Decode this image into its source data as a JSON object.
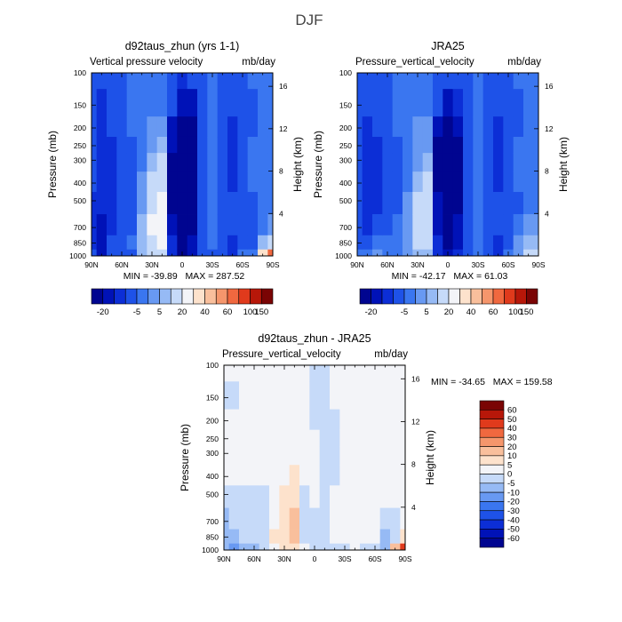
{
  "figure": {
    "title": "DJF"
  },
  "chart_data": [
    {
      "type": "heatmap",
      "title": "d92taus_zhun (yrs 1-1)",
      "subtitle_left": "Vertical pressure velocity",
      "subtitle_right": "mb/day",
      "ylabel": "Pressure (mb)",
      "ylabel_right": "Height (km)",
      "x_ticks": [
        "90N",
        "60N",
        "30N",
        "0",
        "30S",
        "60S",
        "90S"
      ],
      "y_ticks": [
        "100",
        "150",
        "200",
        "250",
        "300",
        "400",
        "500",
        "700",
        "850",
        "1000"
      ],
      "y_right_ticks": [
        "16",
        "12",
        "8",
        "4"
      ],
      "stats": "MIN = -39.89   MAX = 287.52",
      "colorbar_labels": [
        "-20",
        "-5",
        "5",
        "20",
        "40",
        "60",
        "100",
        "150"
      ],
      "colorbar_colors": [
        "#000590",
        "#0012b7",
        "#0c2ed6",
        "#1e52e8",
        "#3a76f0",
        "#6899f2",
        "#96baf5",
        "#c6daf9",
        "#f3f4f8",
        "#fde2cc",
        "#f9bf9c",
        "#f5966c",
        "#f0683f",
        "#e03a1c",
        "#b71709",
        "#7a0404"
      ],
      "colorbar_orientation": "horizontal-below",
      "field": [
        {
          "lat": 90,
          "v": [
            -8,
            -10,
            -10,
            -10,
            -10,
            -10,
            -12,
            -14,
            -12,
            -10
          ]
        },
        {
          "lat": 80,
          "v": [
            -9,
            -11,
            -12,
            -12,
            -12,
            -13,
            -14,
            -16,
            -18,
            -16
          ]
        },
        {
          "lat": 70,
          "v": [
            -7,
            -9,
            -10,
            -11,
            -11,
            -12,
            -13,
            -12,
            -10,
            -8
          ]
        },
        {
          "lat": 60,
          "v": [
            -6,
            -6,
            -7,
            -8,
            -8,
            -9,
            -10,
            -10,
            -9,
            -9
          ]
        },
        {
          "lat": 50,
          "v": [
            -3,
            -4,
            -5,
            -6,
            -6,
            -6,
            -7,
            -6,
            -5,
            -6
          ]
        },
        {
          "lat": 40,
          "v": [
            -2,
            -3,
            -2,
            -2,
            -1,
            1,
            2,
            6,
            8,
            6
          ]
        },
        {
          "lat": 30,
          "v": [
            -1,
            -1,
            0,
            2,
            5,
            10,
            15,
            20,
            18,
            12
          ]
        },
        {
          "lat": 20,
          "v": [
            -2,
            -1,
            2,
            6,
            10,
            16,
            20,
            24,
            22,
            15
          ]
        },
        {
          "lat": 10,
          "v": [
            -6,
            -10,
            -16,
            -20,
            -22,
            -24,
            -22,
            -18,
            -15,
            -12
          ]
        },
        {
          "lat": 0,
          "v": [
            -12,
            -20,
            -28,
            -34,
            -36,
            -38,
            -36,
            -30,
            -28,
            -24
          ]
        },
        {
          "lat": -10,
          "v": [
            -10,
            -16,
            -22,
            -26,
            -28,
            -28,
            -26,
            -22,
            -20,
            -18
          ]
        },
        {
          "lat": -20,
          "v": [
            -6,
            -8,
            -10,
            -10,
            -10,
            -10,
            -8,
            -6,
            -6,
            -8
          ]
        },
        {
          "lat": -30,
          "v": [
            -4,
            -5,
            -5,
            -4,
            -3,
            -3,
            -3,
            -3,
            -4,
            -6
          ]
        },
        {
          "lat": -40,
          "v": [
            -7,
            -8,
            -9,
            -9,
            -9,
            -8,
            -8,
            -8,
            -8,
            -10
          ]
        },
        {
          "lat": -50,
          "v": [
            -8,
            -10,
            -12,
            -12,
            -12,
            -11,
            -10,
            -10,
            -12,
            -14
          ]
        },
        {
          "lat": -60,
          "v": [
            -6,
            -8,
            -9,
            -9,
            -9,
            -9,
            -9,
            -8,
            -6,
            -5
          ]
        },
        {
          "lat": -70,
          "v": [
            -4,
            -6,
            -6,
            -5,
            -4,
            -5,
            -6,
            -8,
            -6,
            -4
          ]
        },
        {
          "lat": -80,
          "v": [
            -2,
            -3,
            -3,
            -3,
            -3,
            -2,
            -1,
            -3,
            6,
            30
          ]
        },
        {
          "lat": -90,
          "v": [
            -2,
            -3,
            -3,
            -3,
            -3,
            -2,
            -1,
            2,
            12,
            60
          ]
        }
      ]
    },
    {
      "type": "heatmap",
      "title": "JRA25",
      "subtitle_left": "Pressure_vertical_velocity",
      "subtitle_right": "mb/day",
      "ylabel": "Pressure (mb)",
      "ylabel_right": "Height (km)",
      "x_ticks": [
        "90N",
        "60N",
        "30N",
        "0",
        "30S",
        "60S",
        "90S"
      ],
      "y_ticks": [
        "100",
        "150",
        "200",
        "250",
        "300",
        "400",
        "500",
        "700",
        "850",
        "1000"
      ],
      "y_right_ticks": [
        "16",
        "12",
        "8",
        "4"
      ],
      "stats": "MIN = -42.17   MAX = 61.03",
      "colorbar_labels": [
        "-20",
        "-5",
        "5",
        "20",
        "40",
        "60",
        "100",
        "150"
      ],
      "colorbar_colors": [
        "#000590",
        "#0012b7",
        "#0c2ed6",
        "#1e52e8",
        "#3a76f0",
        "#6899f2",
        "#96baf5",
        "#c6daf9",
        "#f3f4f8",
        "#fde2cc",
        "#f9bf9c",
        "#f5966c",
        "#f0683f",
        "#e03a1c",
        "#b71709",
        "#7a0404"
      ],
      "colorbar_orientation": "horizontal-below",
      "field": [
        {
          "lat": 90,
          "v": [
            -8,
            -9,
            -10,
            -10,
            -10,
            -10,
            -10,
            -8,
            -6,
            -4
          ]
        },
        {
          "lat": 80,
          "v": [
            -9,
            -10,
            -12,
            -12,
            -12,
            -13,
            -13,
            -12,
            -8,
            -4
          ]
        },
        {
          "lat": 70,
          "v": [
            -7,
            -9,
            -10,
            -11,
            -11,
            -12,
            -12,
            -10,
            -5,
            2
          ]
        },
        {
          "lat": 60,
          "v": [
            -6,
            -7,
            -8,
            -8,
            -8,
            -9,
            -9,
            -7,
            -4,
            -2
          ]
        },
        {
          "lat": 50,
          "v": [
            -3,
            -4,
            -5,
            -6,
            -6,
            -6,
            -6,
            -5,
            -4,
            -5
          ]
        },
        {
          "lat": 40,
          "v": [
            -3,
            -4,
            -3,
            -3,
            -2,
            -1,
            0,
            2,
            3,
            2
          ]
        },
        {
          "lat": 30,
          "v": [
            -1,
            -1,
            0,
            1,
            4,
            7,
            10,
            12,
            10,
            6
          ]
        },
        {
          "lat": 20,
          "v": [
            -2,
            -2,
            1,
            4,
            7,
            10,
            12,
            14,
            12,
            8
          ]
        },
        {
          "lat": 10,
          "v": [
            -6,
            -10,
            -16,
            -22,
            -24,
            -24,
            -20,
            -16,
            -14,
            -12
          ]
        },
        {
          "lat": 0,
          "v": [
            -10,
            -18,
            -26,
            -34,
            -40,
            -40,
            -36,
            -28,
            -24,
            -20
          ]
        },
        {
          "lat": -10,
          "v": [
            -8,
            -14,
            -18,
            -22,
            -24,
            -24,
            -22,
            -18,
            -16,
            -14
          ]
        },
        {
          "lat": -20,
          "v": [
            -6,
            -8,
            -9,
            -9,
            -9,
            -9,
            -8,
            -6,
            -6,
            -6
          ]
        },
        {
          "lat": -30,
          "v": [
            -4,
            -5,
            -5,
            -4,
            -3,
            -3,
            -3,
            -3,
            -4,
            -5
          ]
        },
        {
          "lat": -40,
          "v": [
            -7,
            -8,
            -9,
            -9,
            -9,
            -8,
            -8,
            -8,
            -9,
            -10
          ]
        },
        {
          "lat": -50,
          "v": [
            -8,
            -10,
            -12,
            -12,
            -12,
            -11,
            -10,
            -10,
            -12,
            -12
          ]
        },
        {
          "lat": -60,
          "v": [
            -6,
            -8,
            -9,
            -9,
            -9,
            -9,
            -9,
            -8,
            -6,
            -4
          ]
        },
        {
          "lat": -70,
          "v": [
            -4,
            -6,
            -6,
            -5,
            -4,
            -5,
            -6,
            -5,
            0,
            2
          ]
        },
        {
          "lat": -80,
          "v": [
            -2,
            -3,
            -3,
            -3,
            -3,
            -2,
            -1,
            0,
            8,
            16
          ]
        },
        {
          "lat": -90,
          "v": [
            -2,
            -3,
            -3,
            -3,
            -3,
            -2,
            -1,
            1,
            6,
            12
          ]
        }
      ]
    },
    {
      "type": "heatmap",
      "title": "d92taus_zhun - JRA25",
      "subtitle_left": "Pressure_vertical_velocity",
      "subtitle_right": "mb/day",
      "ylabel": "Pressure (mb)",
      "ylabel_right": "Height (km)",
      "x_ticks": [
        "90N",
        "60N",
        "30N",
        "0",
        "30S",
        "60S",
        "90S"
      ],
      "y_ticks": [
        "100",
        "150",
        "200",
        "250",
        "300",
        "400",
        "500",
        "700",
        "850",
        "1000"
      ],
      "y_right_ticks": [
        "16",
        "12",
        "8",
        "4"
      ],
      "stats": "MIN = -34.65   MAX = 159.58",
      "colorbar_labels": [
        "60",
        "50",
        "40",
        "30",
        "20",
        "10",
        "5",
        "0",
        "-5",
        "-10",
        "-20",
        "-30",
        "-40",
        "-50",
        "-60"
      ],
      "colorbar_colors": [
        "#7a0404",
        "#b71709",
        "#e03a1c",
        "#f0683f",
        "#f5966c",
        "#f9bf9c",
        "#fde2cc",
        "#f3f4f8",
        "#c6daf9",
        "#96baf5",
        "#6899f2",
        "#3a76f0",
        "#1e52e8",
        "#0c2ed6",
        "#0012b7",
        "#000590"
      ],
      "colorbar_orientation": "vertical-right",
      "field": [
        {
          "lat": 90,
          "v": [
            0,
            -1,
            0,
            0,
            0,
            0,
            -2,
            -6,
            -6,
            -6
          ]
        },
        {
          "lat": 80,
          "v": [
            0,
            -1,
            0,
            0,
            0,
            0,
            -1,
            -4,
            -10,
            -12
          ]
        },
        {
          "lat": 70,
          "v": [
            0,
            0,
            0,
            0,
            0,
            0,
            -1,
            -2,
            -5,
            -10
          ]
        },
        {
          "lat": 60,
          "v": [
            0,
            1,
            1,
            0,
            0,
            0,
            -1,
            -3,
            -5,
            -7
          ]
        },
        {
          "lat": 50,
          "v": [
            0,
            0,
            0,
            0,
            0,
            0,
            -1,
            -1,
            -1,
            -1
          ]
        },
        {
          "lat": 40,
          "v": [
            1,
            1,
            1,
            1,
            1,
            2,
            2,
            4,
            5,
            4
          ]
        },
        {
          "lat": 30,
          "v": [
            0,
            0,
            0,
            1,
            1,
            3,
            5,
            8,
            8,
            6
          ]
        },
        {
          "lat": 20,
          "v": [
            0,
            1,
            1,
            2,
            3,
            6,
            8,
            10,
            10,
            7
          ]
        },
        {
          "lat": 10,
          "v": [
            0,
            0,
            0,
            2,
            2,
            0,
            -2,
            -2,
            -1,
            0
          ]
        },
        {
          "lat": 0,
          "v": [
            -2,
            -2,
            -2,
            0,
            4,
            2,
            0,
            -2,
            -4,
            -4
          ]
        },
        {
          "lat": -10,
          "v": [
            -2,
            -2,
            -4,
            -4,
            -4,
            -4,
            -4,
            -4,
            -4,
            -4
          ]
        },
        {
          "lat": -20,
          "v": [
            0,
            0,
            -1,
            -1,
            -1,
            -1,
            0,
            0,
            0,
            -2
          ]
        },
        {
          "lat": -30,
          "v": [
            0,
            0,
            0,
            0,
            0,
            0,
            0,
            0,
            0,
            -1
          ]
        },
        {
          "lat": -40,
          "v": [
            0,
            0,
            0,
            0,
            0,
            0,
            0,
            0,
            1,
            0
          ]
        },
        {
          "lat": -50,
          "v": [
            0,
            0,
            0,
            0,
            0,
            0,
            0,
            0,
            0,
            -2
          ]
        },
        {
          "lat": -60,
          "v": [
            0,
            0,
            0,
            0,
            0,
            0,
            0,
            0,
            0,
            -1
          ]
        },
        {
          "lat": -70,
          "v": [
            0,
            0,
            0,
            0,
            0,
            0,
            0,
            -3,
            -6,
            -6
          ]
        },
        {
          "lat": -80,
          "v": [
            0,
            0,
            0,
            0,
            0,
            0,
            0,
            -3,
            -2,
            14
          ]
        },
        {
          "lat": -90,
          "v": [
            0,
            0,
            0,
            0,
            0,
            0,
            0,
            1,
            6,
            48
          ]
        }
      ]
    }
  ]
}
